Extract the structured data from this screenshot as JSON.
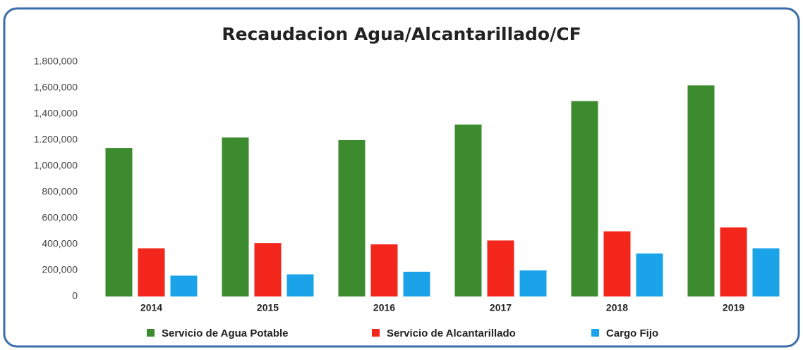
{
  "chart_data": {
    "type": "bar",
    "title": "Recaudacion Agua/Alcantarillado/CF",
    "categories": [
      "2014",
      "2015",
      "2016",
      "2017",
      "2018",
      "2019"
    ],
    "series": [
      {
        "name": "Servicio de Agua Potable",
        "color": "#3d8b2f",
        "values": [
          1140000,
          1220000,
          1200000,
          1320000,
          1500000,
          1620000
        ]
      },
      {
        "name": "Servicio de Alcantarillado",
        "color": "#f2261b",
        "values": [
          370000,
          410000,
          400000,
          430000,
          500000,
          530000
        ]
      },
      {
        "name": "Cargo Fijo",
        "color": "#1aa3e8",
        "values": [
          160000,
          170000,
          190000,
          200000,
          330000,
          370000
        ]
      }
    ],
    "ylim": [
      0,
      1800000
    ],
    "yticks": [
      0,
      {
        "value": 200000,
        "label": "200,000"
      },
      {
        "value": 400000,
        "label": "400,000"
      },
      {
        "value": 600000,
        "label": "600,000"
      },
      {
        "value": 800000,
        "label": "800,000"
      },
      {
        "value": 1000000,
        "label": "1,000,000"
      },
      {
        "value": 1200000,
        "label": "1.200,000"
      },
      {
        "value": 1400000,
        "label": "1,400,000"
      },
      {
        "value": 1600000,
        "label": "1,600,000"
      },
      {
        "value": 1800000,
        "label": "1.800,000"
      }
    ],
    "grid": false,
    "legend": "bottom"
  }
}
